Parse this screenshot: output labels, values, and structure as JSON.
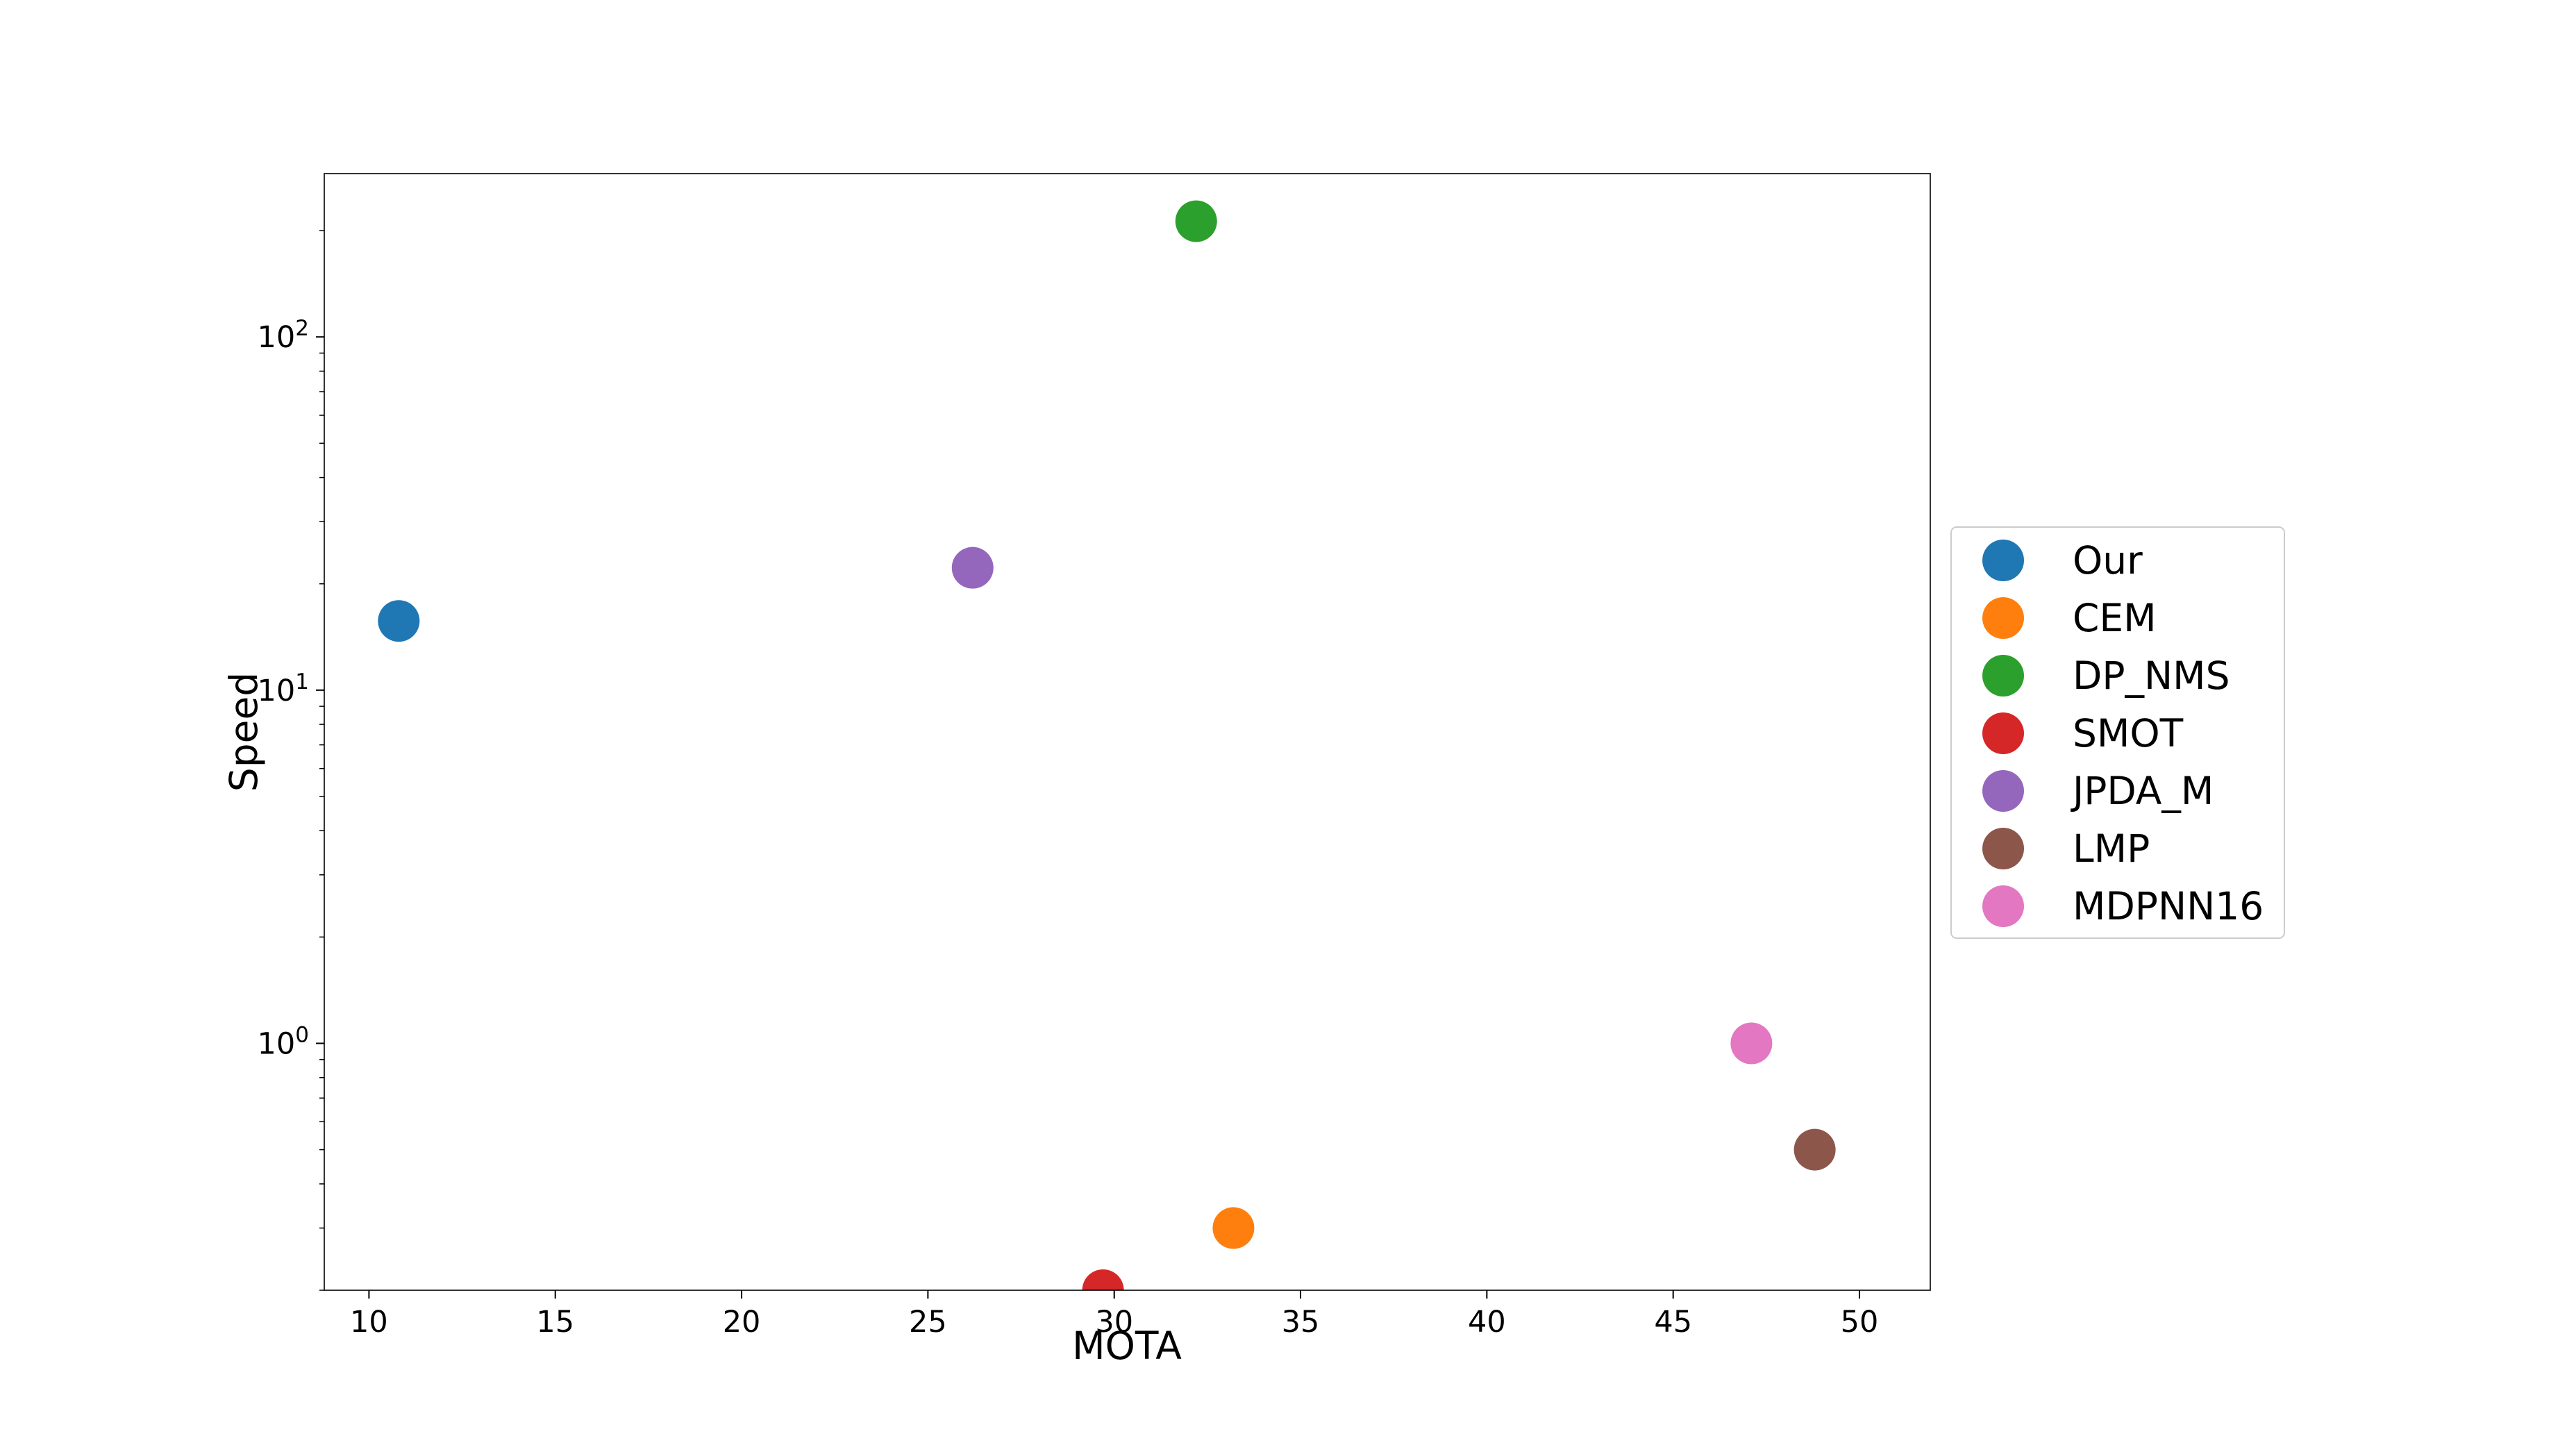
{
  "chart_data": {
    "type": "scatter",
    "title": "",
    "xlabel": "MOTA",
    "ylabel": "Speed",
    "xlim": [
      8.8,
      51.9
    ],
    "ylim": [
      0.2,
      290
    ],
    "yscale": "log",
    "grid": false,
    "legend_position": "right-outside",
    "x_ticks": [
      10,
      15,
      20,
      25,
      30,
      35,
      40,
      45,
      50
    ],
    "y_ticks": [
      {
        "base": "10",
        "exp": "0",
        "value": 1
      },
      {
        "base": "10",
        "exp": "1",
        "value": 10
      },
      {
        "base": "10",
        "exp": "2",
        "value": 100
      }
    ],
    "series": [
      {
        "name": "Our",
        "color": "#1f77b4",
        "x": 10.8,
        "y": 15.7
      },
      {
        "name": "CEM",
        "color": "#ff7f0e",
        "x": 33.2,
        "y": 0.3
      },
      {
        "name": "DP_NMS",
        "color": "#2ca02c",
        "x": 32.2,
        "y": 212.6
      },
      {
        "name": "SMOT",
        "color": "#d62728",
        "x": 29.7,
        "y": 0.2
      },
      {
        "name": "JPDA_M",
        "color": "#9467bd",
        "x": 26.2,
        "y": 22.2
      },
      {
        "name": "LMP",
        "color": "#8c564b",
        "x": 48.8,
        "y": 0.5
      },
      {
        "name": "MDPNN16",
        "color": "#e377c2",
        "x": 47.1,
        "y": 1.0
      }
    ]
  }
}
